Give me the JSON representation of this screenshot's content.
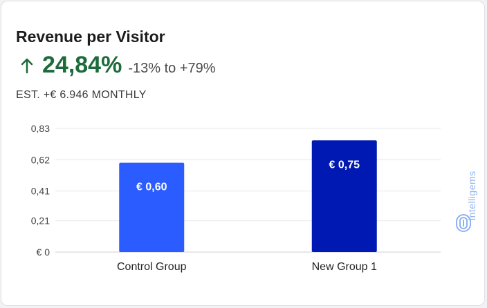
{
  "card": {
    "title": "Revenue per Visitor",
    "lift": "24,84%",
    "range": "-13% to +79%",
    "estimate": "EST. +€ 6.946 MONTHLY",
    "brand": "intelligems",
    "brand_icon": "intelligems-logo-icon",
    "arrow_icon": "arrow-up-icon"
  },
  "colors": {
    "positive": "#1d6a3a",
    "control_bar": "#2b5cff",
    "variant_bar": "#0019b3",
    "brand": "#8fb2f2"
  },
  "chart_data": {
    "type": "bar",
    "categories": [
      "Control Group",
      "New Group 1"
    ],
    "values": [
      0.6,
      0.75
    ],
    "data_labels": [
      "€ 0,60",
      "€ 0,75"
    ],
    "bar_colors": [
      "#2b5cff",
      "#0019b3"
    ],
    "yticks": [
      0,
      0.21,
      0.41,
      0.62,
      0.83
    ],
    "ytick_labels": [
      "€ 0",
      "0,21",
      "0,41",
      "0,62",
      "0,83"
    ],
    "ylim": [
      0,
      0.83
    ],
    "grid": true
  }
}
